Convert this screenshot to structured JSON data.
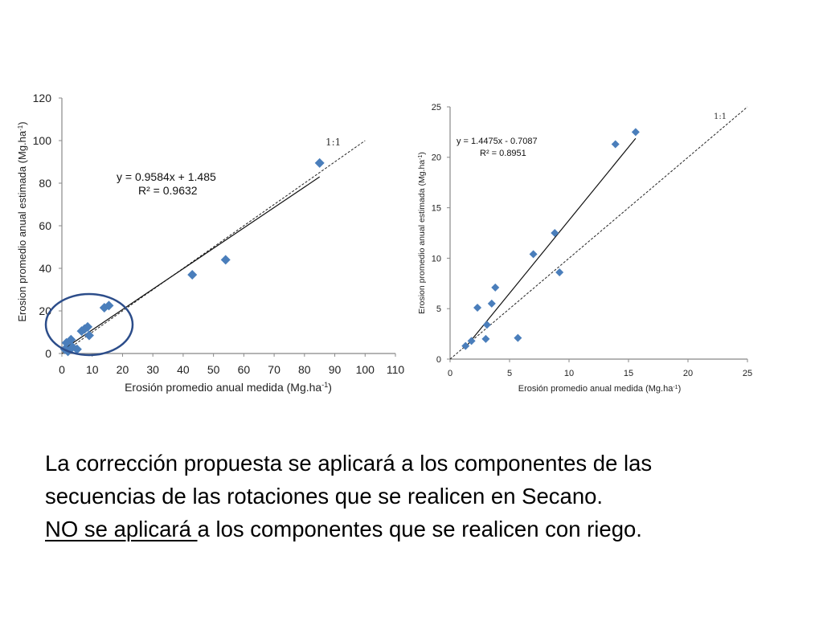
{
  "chart_data": [
    {
      "type": "scatter",
      "xlabel": "Erosión promedio anual medida (Mg.ha",
      "xlabel_sup": "-1",
      "xlabel_end": ")",
      "ylabel": "Erosion promedio anual estimada (Mg.ha",
      "ylabel_sup": "-1",
      "ylabel_end": ")",
      "xlim": [
        0,
        110
      ],
      "ylim": [
        0,
        120
      ],
      "xticks": [
        0,
        10,
        20,
        30,
        40,
        50,
        60,
        70,
        80,
        90,
        100,
        110
      ],
      "yticks": [
        0,
        20,
        40,
        60,
        80,
        100,
        120
      ],
      "grid": false,
      "marker_color": "#4a7ebb",
      "points": [
        {
          "x": 1.0,
          "y": 2.0
        },
        {
          "x": 1.5,
          "y": 5.0
        },
        {
          "x": 2.0,
          "y": 1.0
        },
        {
          "x": 3.0,
          "y": 6.5
        },
        {
          "x": 3.5,
          "y": 3.0
        },
        {
          "x": 5.0,
          "y": 2.0
        },
        {
          "x": 6.5,
          "y": 10.5
        },
        {
          "x": 7.5,
          "y": 11.5
        },
        {
          "x": 8.5,
          "y": 12.5
        },
        {
          "x": 9.0,
          "y": 8.5
        },
        {
          "x": 14.0,
          "y": 21.5
        },
        {
          "x": 15.5,
          "y": 22.5
        },
        {
          "x": 43.0,
          "y": 37.0
        },
        {
          "x": 54.0,
          "y": 44.0
        },
        {
          "x": 85.0,
          "y": 89.5
        }
      ],
      "trendline": {
        "slope": 0.9584,
        "intercept": 1.485,
        "x_range": [
          1,
          85
        ]
      },
      "trend_equation": "y = 0.9584x  + 1.485",
      "r_squared": "R² = 0.9632",
      "reference_line": {
        "label": "1:1",
        "x_range": [
          0,
          100
        ]
      },
      "annotation": "circle highlighting low-value points"
    },
    {
      "type": "scatter",
      "xlabel": "Erosión promedio anual medida (Mg.ha",
      "xlabel_sup": "-1",
      "xlabel_end": ")",
      "ylabel": "Erosion promedio anual estimada (Mg.ha",
      "ylabel_sup": "-1",
      "ylabel_end": ")",
      "xlim": [
        0,
        25
      ],
      "ylim": [
        0,
        25
      ],
      "xticks": [
        0,
        5,
        10,
        15,
        20,
        25
      ],
      "yticks": [
        0,
        5,
        10,
        15,
        20,
        25
      ],
      "grid": false,
      "marker_color": "#4a7ebb",
      "points": [
        {
          "x": 1.3,
          "y": 1.3
        },
        {
          "x": 1.8,
          "y": 1.8
        },
        {
          "x": 2.3,
          "y": 5.1
        },
        {
          "x": 3.0,
          "y": 2.0
        },
        {
          "x": 3.1,
          "y": 3.4
        },
        {
          "x": 3.5,
          "y": 5.5
        },
        {
          "x": 3.8,
          "y": 7.1
        },
        {
          "x": 5.7,
          "y": 2.1
        },
        {
          "x": 7.0,
          "y": 10.4
        },
        {
          "x": 8.8,
          "y": 12.5
        },
        {
          "x": 9.2,
          "y": 8.6
        },
        {
          "x": 13.9,
          "y": 21.3
        },
        {
          "x": 15.6,
          "y": 22.5
        }
      ],
      "trendline": {
        "slope": 1.4475,
        "intercept": -0.7087,
        "x_range": [
          1.5,
          15.6
        ]
      },
      "trend_equation": "y = 1.4475x - 0.7087",
      "r_squared": "R² = 0.8951",
      "reference_line": {
        "label": "1:1",
        "x_range": [
          0,
          25
        ]
      }
    }
  ],
  "caption": {
    "line1": "La corrección propuesta se aplicará a los componentes de las",
    "line2": "secuencias de las rotaciones que se realicen en Secano.",
    "line3_underlined": "NO se aplicará ",
    "line3_rest": "a los componentes que se realicen con riego."
  }
}
